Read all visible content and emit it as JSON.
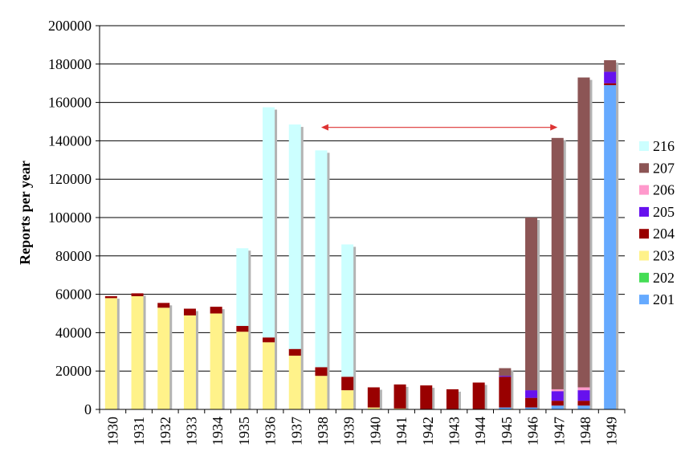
{
  "chart_data": {
    "type": "bar",
    "stacked": true,
    "title": "",
    "xlabel": "",
    "ylabel": "Reports per year",
    "ylim": [
      0,
      200000
    ],
    "yticks": [
      0,
      20000,
      40000,
      60000,
      80000,
      100000,
      120000,
      140000,
      160000,
      180000,
      200000
    ],
    "grid": "horizontal",
    "legend_position": "right",
    "categories": [
      "1930",
      "1931",
      "1932",
      "1933",
      "1934",
      "1935",
      "1936",
      "1937",
      "1938",
      "1939",
      "1940",
      "1941",
      "1942",
      "1943",
      "1944",
      "1945",
      "1946",
      "1947",
      "1948",
      "1949"
    ],
    "series": [
      {
        "name": "201",
        "color": "#66aaff",
        "values": [
          0,
          0,
          0,
          0,
          0,
          0,
          0,
          0,
          0,
          0,
          0,
          0,
          0,
          0,
          0,
          1000,
          1000,
          2000,
          2000,
          169000
        ]
      },
      {
        "name": "202",
        "color": "#44dd55",
        "values": [
          0,
          0,
          0,
          0,
          0,
          0,
          0,
          0,
          0,
          0,
          0,
          0,
          0,
          0,
          0,
          0,
          0,
          0,
          0,
          0
        ]
      },
      {
        "name": "203",
        "color": "#fff28a",
        "values": [
          58000,
          59000,
          53000,
          49000,
          50000,
          40500,
          35000,
          28000,
          17500,
          10000,
          1000,
          500,
          0,
          0,
          0,
          0,
          0,
          0,
          0,
          0
        ]
      },
      {
        "name": "204",
        "color": "#990000",
        "values": [
          1000,
          1500,
          2500,
          3500,
          3500,
          3000,
          2500,
          3500,
          4500,
          7000,
          10500,
          12500,
          12500,
          10500,
          14000,
          16000,
          5000,
          2500,
          2500,
          1000
        ]
      },
      {
        "name": "205",
        "color": "#6611ee",
        "values": [
          0,
          0,
          0,
          0,
          0,
          0,
          0,
          0,
          0,
          0,
          0,
          0,
          0,
          0,
          0,
          500,
          4000,
          5000,
          5500,
          6000
        ]
      },
      {
        "name": "206",
        "color": "#ff99cc",
        "values": [
          0,
          0,
          0,
          0,
          0,
          0,
          0,
          0,
          0,
          0,
          0,
          0,
          0,
          0,
          0,
          0,
          0,
          1000,
          1500,
          0
        ]
      },
      {
        "name": "207",
        "color": "#8c5555",
        "values": [
          0,
          0,
          0,
          0,
          0,
          0,
          0,
          0,
          0,
          0,
          0,
          0,
          0,
          0,
          0,
          4000,
          90000,
          131000,
          161500,
          6000
        ]
      },
      {
        "name": "216",
        "color": "#ccffff",
        "values": [
          0,
          0,
          0,
          0,
          0,
          40500,
          120000,
          117000,
          113000,
          69000,
          0,
          0,
          0,
          0,
          0,
          0,
          0,
          0,
          0,
          0
        ]
      }
    ],
    "annotations": [
      {
        "type": "double-arrow",
        "from": "1938",
        "to": "1947",
        "y": 147000,
        "color": "#dd3333"
      }
    ]
  }
}
